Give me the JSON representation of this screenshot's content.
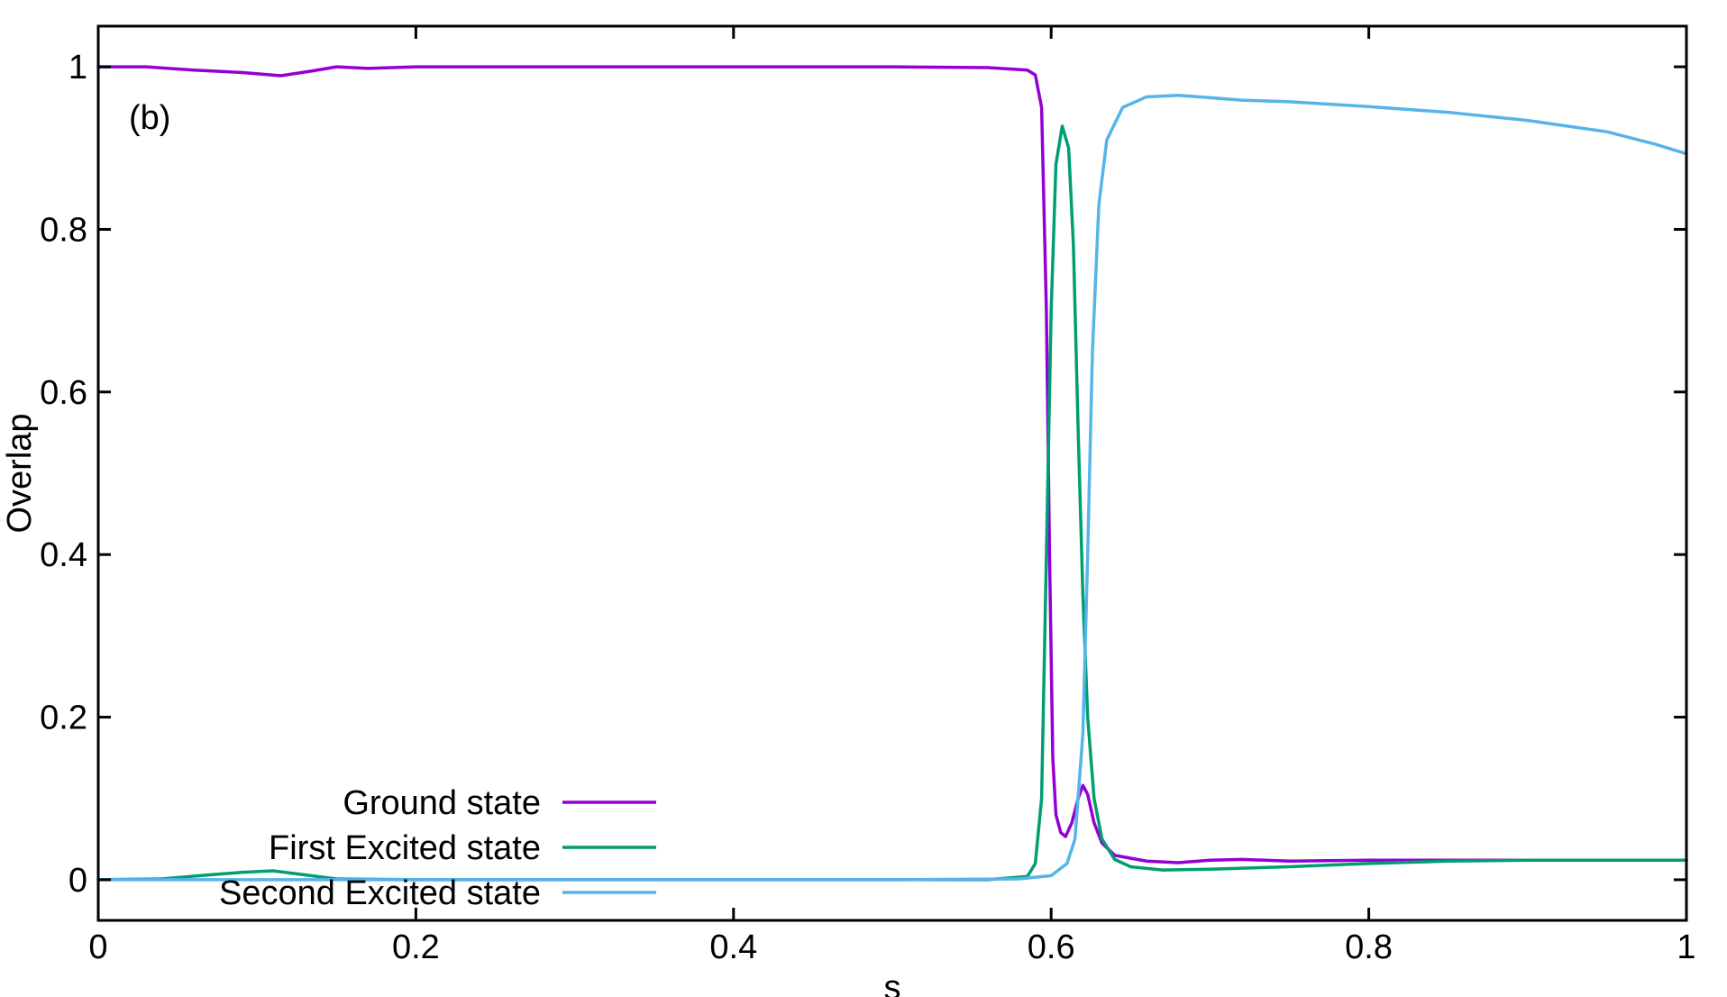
{
  "chart_data": {
    "type": "line",
    "title": "",
    "panel_label": "(b)",
    "xlabel": "s",
    "ylabel": "Overlap",
    "xlim": [
      0,
      1
    ],
    "ylim": [
      -0.05,
      1.05
    ],
    "grid": false,
    "legend_placement": "bottom-left",
    "x_ticks": [
      {
        "value": 0,
        "label": "0"
      },
      {
        "value": 0.2,
        "label": "0.2"
      },
      {
        "value": 0.4,
        "label": "0.4"
      },
      {
        "value": 0.6,
        "label": "0.6"
      },
      {
        "value": 0.8,
        "label": "0.8"
      },
      {
        "value": 1,
        "label": "1"
      }
    ],
    "y_ticks": [
      {
        "value": 0,
        "label": "0"
      },
      {
        "value": 0.2,
        "label": "0.2"
      },
      {
        "value": 0.4,
        "label": "0.4"
      },
      {
        "value": 0.6,
        "label": "0.6"
      },
      {
        "value": 0.8,
        "label": "0.8"
      },
      {
        "value": 1,
        "label": "1"
      }
    ],
    "series": [
      {
        "name": "Ground state",
        "color": "#9400d3",
        "points": [
          [
            0,
            1.0
          ],
          [
            0.03,
            1.0
          ],
          [
            0.06,
            0.996
          ],
          [
            0.09,
            0.993
          ],
          [
            0.115,
            0.989
          ],
          [
            0.135,
            0.995
          ],
          [
            0.15,
            1.0
          ],
          [
            0.17,
            0.998
          ],
          [
            0.2,
            1.0
          ],
          [
            0.3,
            1.0
          ],
          [
            0.4,
            1.0
          ],
          [
            0.5,
            1.0
          ],
          [
            0.56,
            0.999
          ],
          [
            0.585,
            0.996
          ],
          [
            0.59,
            0.99
          ],
          [
            0.594,
            0.95
          ],
          [
            0.597,
            0.7
          ],
          [
            0.599,
            0.4
          ],
          [
            0.601,
            0.15
          ],
          [
            0.603,
            0.08
          ],
          [
            0.606,
            0.058
          ],
          [
            0.609,
            0.053
          ],
          [
            0.613,
            0.07
          ],
          [
            0.617,
            0.1
          ],
          [
            0.62,
            0.116
          ],
          [
            0.623,
            0.105
          ],
          [
            0.627,
            0.07
          ],
          [
            0.632,
            0.045
          ],
          [
            0.64,
            0.03
          ],
          [
            0.66,
            0.023
          ],
          [
            0.68,
            0.021
          ],
          [
            0.7,
            0.024
          ],
          [
            0.72,
            0.025
          ],
          [
            0.75,
            0.023
          ],
          [
            0.8,
            0.024
          ],
          [
            0.9,
            0.024
          ],
          [
            1.0,
            0.024
          ]
        ]
      },
      {
        "name": "First Excited state",
        "color": "#009e73",
        "points": [
          [
            0,
            0.0
          ],
          [
            0.04,
            0.001
          ],
          [
            0.07,
            0.006
          ],
          [
            0.09,
            0.009
          ],
          [
            0.11,
            0.011
          ],
          [
            0.13,
            0.006
          ],
          [
            0.15,
            0.001
          ],
          [
            0.2,
            0.0
          ],
          [
            0.3,
            0.0
          ],
          [
            0.4,
            0.0
          ],
          [
            0.5,
            0.0
          ],
          [
            0.56,
            0.0
          ],
          [
            0.585,
            0.004
          ],
          [
            0.59,
            0.02
          ],
          [
            0.594,
            0.1
          ],
          [
            0.597,
            0.4
          ],
          [
            0.6,
            0.7
          ],
          [
            0.603,
            0.88
          ],
          [
            0.607,
            0.927
          ],
          [
            0.611,
            0.9
          ],
          [
            0.614,
            0.78
          ],
          [
            0.617,
            0.55
          ],
          [
            0.62,
            0.35
          ],
          [
            0.623,
            0.2
          ],
          [
            0.627,
            0.1
          ],
          [
            0.632,
            0.05
          ],
          [
            0.64,
            0.025
          ],
          [
            0.65,
            0.016
          ],
          [
            0.67,
            0.012
          ],
          [
            0.7,
            0.013
          ],
          [
            0.75,
            0.016
          ],
          [
            0.8,
            0.02
          ],
          [
            0.85,
            0.023
          ],
          [
            0.9,
            0.024
          ],
          [
            1.0,
            0.024
          ]
        ]
      },
      {
        "name": "Second Excited state",
        "color": "#56b4e9",
        "points": [
          [
            0,
            0.0
          ],
          [
            0.2,
            0.0
          ],
          [
            0.4,
            0.0
          ],
          [
            0.5,
            0.0
          ],
          [
            0.58,
            0.001
          ],
          [
            0.6,
            0.005
          ],
          [
            0.61,
            0.02
          ],
          [
            0.615,
            0.05
          ],
          [
            0.62,
            0.18
          ],
          [
            0.623,
            0.4
          ],
          [
            0.626,
            0.65
          ],
          [
            0.63,
            0.83
          ],
          [
            0.635,
            0.91
          ],
          [
            0.645,
            0.95
          ],
          [
            0.66,
            0.963
          ],
          [
            0.68,
            0.965
          ],
          [
            0.7,
            0.962
          ],
          [
            0.72,
            0.959
          ],
          [
            0.75,
            0.957
          ],
          [
            0.8,
            0.951
          ],
          [
            0.85,
            0.944
          ],
          [
            0.9,
            0.934
          ],
          [
            0.95,
            0.92
          ],
          [
            0.98,
            0.905
          ],
          [
            1.0,
            0.893
          ]
        ]
      }
    ]
  }
}
